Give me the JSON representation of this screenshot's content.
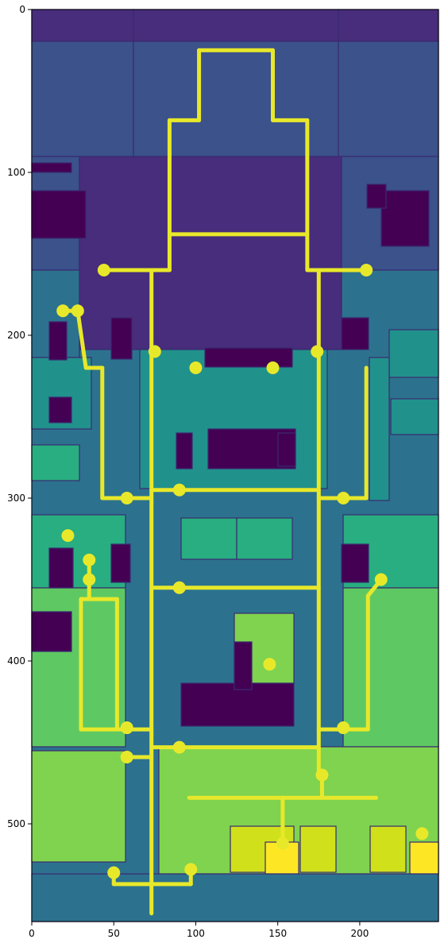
{
  "chart_data": {
    "type": "heatmap",
    "description_elements": {
      "image": "segmentation label map (viridis colormap) with yellow skeleton graph overlay"
    },
    "xlim": [
      0,
      248
    ],
    "ylim": [
      560,
      0
    ],
    "xticks": [
      "0",
      "50",
      "100",
      "150",
      "200"
    ],
    "yticks": [
      "0",
      "100",
      "200",
      "300",
      "400",
      "500"
    ],
    "xtick_values": [
      0,
      50,
      100,
      150,
      200
    ],
    "ytick_values": [
      0,
      100,
      200,
      300,
      400,
      500
    ],
    "colors": {
      "deep_purple": "#440154",
      "purple": "#472d7b",
      "indigo": "#3b528b",
      "blue": "#2c728e",
      "teal": "#21918c",
      "green_teal": "#28ae80",
      "green": "#5ec962",
      "lime": "#addc30",
      "yellow_green": "#d0e11c",
      "yellow": "#fde725",
      "boundary": "#3b2a70",
      "skeleton": "#e8e82a"
    },
    "skeleton_nodes": [
      [
        44,
        160
      ],
      [
        204,
        160
      ],
      [
        19,
        185
      ],
      [
        28,
        185
      ],
      [
        75,
        210
      ],
      [
        174,
        210
      ],
      [
        100,
        220
      ],
      [
        147,
        220
      ],
      [
        58,
        300
      ],
      [
        90,
        295
      ],
      [
        190,
        300
      ],
      [
        22,
        323
      ],
      [
        35,
        338
      ],
      [
        35,
        350
      ],
      [
        90,
        355
      ],
      [
        213,
        350
      ],
      [
        145,
        402
      ],
      [
        58,
        441
      ],
      [
        190,
        441
      ],
      [
        90,
        453
      ],
      [
        58,
        459
      ],
      [
        177,
        470
      ],
      [
        153,
        512
      ],
      [
        238,
        506
      ],
      [
        50,
        530
      ],
      [
        97,
        528
      ]
    ],
    "skeleton_edges": [
      [
        [
          102,
          25
        ],
        [
          147,
          25
        ]
      ],
      [
        [
          102,
          25
        ],
        [
          102,
          68
        ]
      ],
      [
        [
          147,
          25
        ],
        [
          147,
          68
        ]
      ],
      [
        [
          84,
          68
        ],
        [
          102,
          68
        ]
      ],
      [
        [
          147,
          68
        ],
        [
          168,
          68
        ]
      ],
      [
        [
          84,
          68
        ],
        [
          84,
          160
        ]
      ],
      [
        [
          168,
          68
        ],
        [
          168,
          160
        ]
      ],
      [
        [
          84,
          138
        ],
        [
          168,
          138
        ]
      ],
      [
        [
          44,
          160
        ],
        [
          84,
          160
        ]
      ],
      [
        [
          168,
          160
        ],
        [
          204,
          160
        ]
      ],
      [
        [
          73,
          160
        ],
        [
          73,
          555
        ]
      ],
      [
        [
          175,
          160
        ],
        [
          175,
          470
        ]
      ],
      [
        [
          19,
          185
        ],
        [
          28,
          185
        ]
      ],
      [
        [
          28,
          185
        ],
        [
          33,
          220
        ]
      ],
      [
        [
          33,
          220
        ],
        [
          43,
          220
        ]
      ],
      [
        [
          43,
          220
        ],
        [
          43,
          300
        ]
      ],
      [
        [
          43,
          300
        ],
        [
          73,
          300
        ]
      ],
      [
        [
          73,
          295
        ],
        [
          175,
          295
        ]
      ],
      [
        [
          175,
          300
        ],
        [
          204,
          300
        ]
      ],
      [
        [
          204,
          220
        ],
        [
          204,
          300
        ]
      ],
      [
        [
          73,
          355
        ],
        [
          175,
          355
        ]
      ],
      [
        [
          35,
          338
        ],
        [
          35,
          362
        ]
      ],
      [
        [
          30,
          362
        ],
        [
          52,
          362
        ]
      ],
      [
        [
          30,
          362
        ],
        [
          30,
          442
        ]
      ],
      [
        [
          52,
          362
        ],
        [
          52,
          441
        ]
      ],
      [
        [
          30,
          442
        ],
        [
          73,
          442
        ]
      ],
      [
        [
          205,
          360
        ],
        [
          213,
          350
        ]
      ],
      [
        [
          205,
          360
        ],
        [
          205,
          442
        ]
      ],
      [
        [
          175,
          442
        ],
        [
          205,
          442
        ]
      ],
      [
        [
          73,
          453
        ],
        [
          175,
          453
        ]
      ],
      [
        [
          58,
          459
        ],
        [
          73,
          459
        ]
      ],
      [
        [
          177,
          470
        ],
        [
          177,
          484
        ]
      ],
      [
        [
          96,
          484
        ],
        [
          210,
          484
        ]
      ],
      [
        [
          153,
          484
        ],
        [
          153,
          512
        ]
      ],
      [
        [
          50,
          530
        ],
        [
          50,
          537
        ]
      ],
      [
        [
          50,
          537
        ],
        [
          97,
          537
        ]
      ],
      [
        [
          97,
          528
        ],
        [
          97,
          537
        ]
      ]
    ]
  }
}
